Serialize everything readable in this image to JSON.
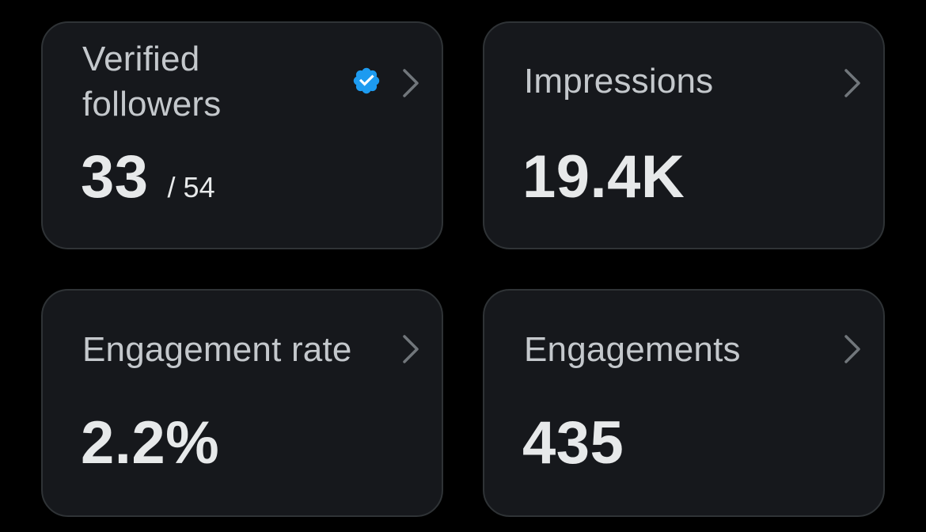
{
  "cards": [
    {
      "label": "Verified followers",
      "value": "33",
      "secondary": "/ 54",
      "icon": "verified-badge-icon",
      "chevron": "chevron-right-icon"
    },
    {
      "label": "Impressions",
      "value": "19.4K",
      "chevron": "chevron-right-icon"
    },
    {
      "label": "Engagement rate",
      "value": "2.2%",
      "chevron": "chevron-right-icon"
    },
    {
      "label": "Engagements",
      "value": "435",
      "chevron": "chevron-right-icon"
    }
  ],
  "colors": {
    "background": "#000000",
    "card": "#16181c",
    "card_border": "#2f3336",
    "label": "#c4c8cc",
    "value": "#e7e9ea",
    "chevron": "#71767b",
    "verified_blue": "#1d9bf0"
  }
}
